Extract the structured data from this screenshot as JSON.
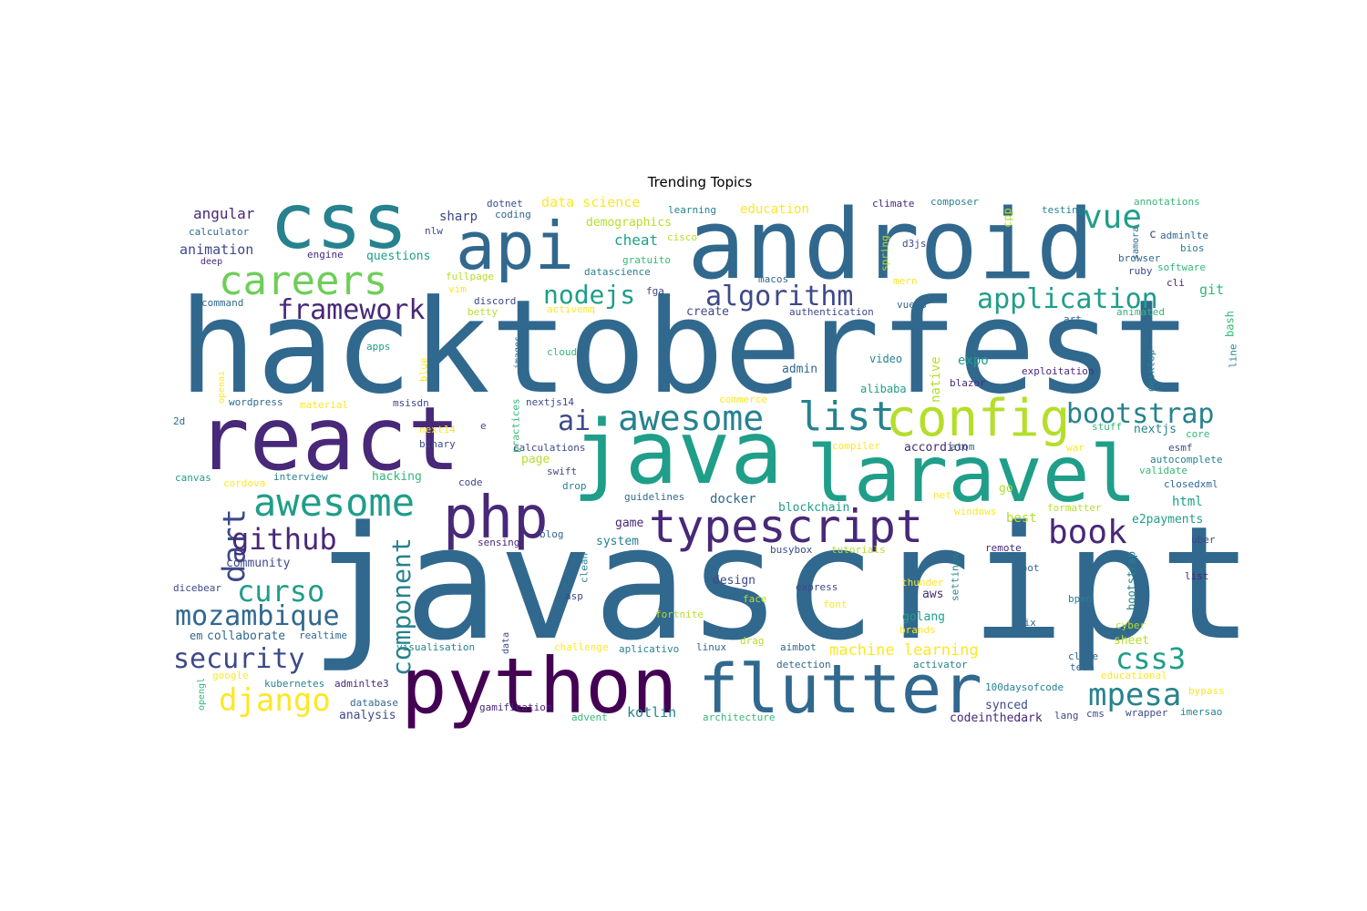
{
  "title": "Trending Topics",
  "words": [
    "hacktoberfest",
    "javascript",
    "android",
    "css",
    "api",
    "react",
    "java",
    "laravel",
    "python",
    "flutter",
    "typescript",
    "php",
    "config",
    "careers",
    "awesome",
    "list",
    "ai",
    "vue",
    "application",
    "bootstrap",
    "algorithm",
    "nodejs",
    "framework",
    "dart",
    "github",
    "curso",
    "mozambique",
    "security",
    "django",
    "component",
    "mpesa",
    "book",
    "css3",
    "angular",
    "animation",
    "calculator",
    "questions",
    "deep",
    "engine",
    "command",
    "dotnet",
    "coding",
    "sharp",
    "nlw",
    "data science",
    "demographics",
    "cheat",
    "cisco",
    "gratuito",
    "datascience",
    "fullpage",
    "vim",
    "discord",
    "betty",
    "fga",
    "activemq",
    "create",
    "learning",
    "education",
    "climate",
    "composer",
    "testing",
    "annotations",
    "c",
    "adminlte",
    "samora",
    "bios",
    "browser",
    "ruby",
    "software",
    "cli",
    "git",
    "cpp",
    "spring",
    "d3js",
    "macos",
    "mern",
    "vuejs",
    "authentication",
    "animated",
    "bash",
    "line",
    "art",
    "expo",
    "native",
    "video",
    "admin",
    "alibaba",
    "exploitation",
    "desktop",
    "blazor",
    "apps",
    "cloud",
    "openai",
    "blue",
    "images",
    "practices",
    "wordpress",
    "material",
    "msisdn",
    "nextjs14",
    "commerce",
    "2d",
    "next14",
    "e",
    "stuff",
    "nextjs",
    "core",
    "binary",
    "calculations",
    "compiler",
    "accordion",
    "atom",
    "war",
    "esmf",
    "autocomplete",
    "validate",
    "canvas",
    "cordova",
    "interview",
    "hacking",
    "page",
    "swift",
    "code",
    "drop",
    "closedxml",
    "guidelines",
    "docker",
    "net",
    "go",
    "windows",
    "formatter",
    "blockchain",
    "html",
    "best",
    "e2payments",
    "game",
    "sensing",
    "blog",
    "system",
    "busybox",
    "tutorials",
    "settings",
    "remote",
    "uber",
    "community",
    "clean",
    "boot",
    "list2",
    "dicebear",
    "asp",
    "design",
    "express",
    "thunder",
    "aws",
    "face",
    "font",
    "bpmn",
    "golang",
    "fortnite",
    "aix",
    "cyber",
    "brands",
    "em",
    "collaborate",
    "realtime",
    "machine learning",
    "sheet",
    "visualisation",
    "challenge",
    "aplicativo",
    "linux",
    "drag",
    "aimbot",
    "data",
    "detection",
    "activator",
    "clone",
    "team",
    "google",
    "educational",
    "opengl",
    "kubernetes",
    "adminlte3",
    "100daysofcode",
    "bypass",
    "database",
    "gamification",
    "synced",
    "imersao",
    "analysis",
    "kotlin",
    "advent",
    "architecture",
    "codeinthedark",
    "lang",
    "cms",
    "wrapper"
  ],
  "colors": {
    "purple_dark": "#440154",
    "purple": "#482878",
    "indigo": "#3e4989",
    "blue": "#31688e",
    "teal": "#26828e",
    "cyan": "#1f9e89",
    "green": "#35b779",
    "lime": "#6ece58",
    "yellowgreen": "#b5de2b",
    "yellow": "#fde725"
  }
}
